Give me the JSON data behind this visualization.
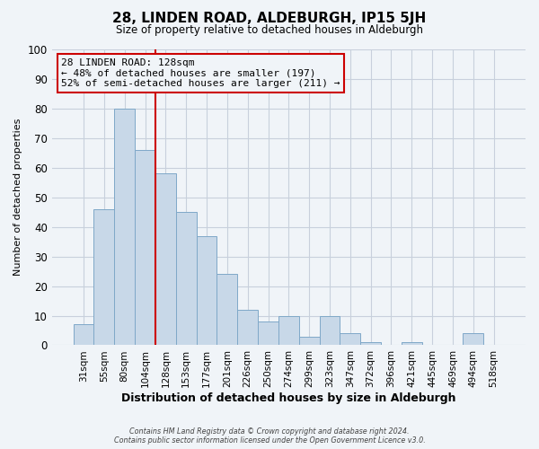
{
  "title": "28, LINDEN ROAD, ALDEBURGH, IP15 5JH",
  "subtitle": "Size of property relative to detached houses in Aldeburgh",
  "xlabel": "Distribution of detached houses by size in Aldeburgh",
  "ylabel": "Number of detached properties",
  "bar_labels": [
    "31sqm",
    "55sqm",
    "80sqm",
    "104sqm",
    "128sqm",
    "153sqm",
    "177sqm",
    "201sqm",
    "226sqm",
    "250sqm",
    "274sqm",
    "299sqm",
    "323sqm",
    "347sqm",
    "372sqm",
    "396sqm",
    "421sqm",
    "445sqm",
    "469sqm",
    "494sqm",
    "518sqm"
  ],
  "bar_heights": [
    7,
    46,
    80,
    66,
    58,
    45,
    37,
    24,
    12,
    8,
    10,
    3,
    10,
    4,
    1,
    0,
    1,
    0,
    0,
    4,
    0
  ],
  "bar_color": "#c8d8e8",
  "bar_edgecolor": "#7fa8c8",
  "grid_color": "#c8d0dc",
  "plot_bg_color": "#f0f4f8",
  "fig_bg_color": "#f0f4f8",
  "vline_index": 4,
  "vline_color": "#cc0000",
  "annotation_title": "28 LINDEN ROAD: 128sqm",
  "annotation_line1": "← 48% of detached houses are smaller (197)",
  "annotation_line2": "52% of semi-detached houses are larger (211) →",
  "annotation_box_edgecolor": "#cc0000",
  "annotation_box_facecolor": "#f0f4f8",
  "footer_line1": "Contains HM Land Registry data © Crown copyright and database right 2024.",
  "footer_line2": "Contains public sector information licensed under the Open Government Licence v3.0.",
  "ylim": [
    0,
    100
  ],
  "yticks": [
    0,
    10,
    20,
    30,
    40,
    50,
    60,
    70,
    80,
    90,
    100
  ]
}
